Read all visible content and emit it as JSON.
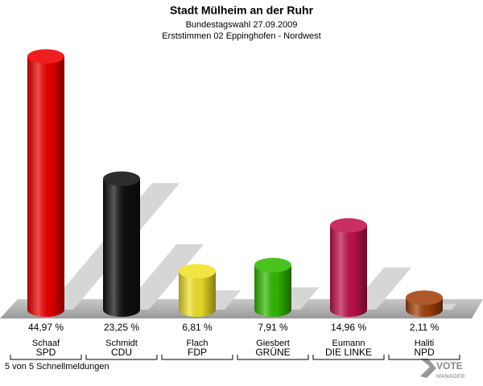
{
  "chart_data": {
    "type": "bar",
    "title": "Stadt Mülheim an der Ruhr",
    "subtitle": "Bundestagswahl 27.09.2009",
    "subtitle2": "Erststimmen 02 Eppinghofen - Nordwest",
    "categories": [
      "SPD",
      "CDU",
      "FDP",
      "GRÜNE",
      "DIE LINKE",
      "NPD"
    ],
    "candidates": [
      "Schaaf",
      "Schmidt",
      "Flach",
      "Giesbert",
      "Eumann",
      "Haliti"
    ],
    "values": [
      44.97,
      23.25,
      6.81,
      7.91,
      14.96,
      2.11
    ],
    "value_labels": [
      "44,97 %",
      "23,25 %",
      "6,81 %",
      "7,91 %",
      "14,96 %",
      "2,11 %"
    ],
    "colors": [
      "#ee0000",
      "#111111",
      "#f2e227",
      "#33bb00",
      "#c2124f",
      "#a3400c"
    ],
    "footer": "5 von 5 Schnellmeldungen",
    "logo": [
      "VOTE",
      "MANAGER"
    ]
  }
}
